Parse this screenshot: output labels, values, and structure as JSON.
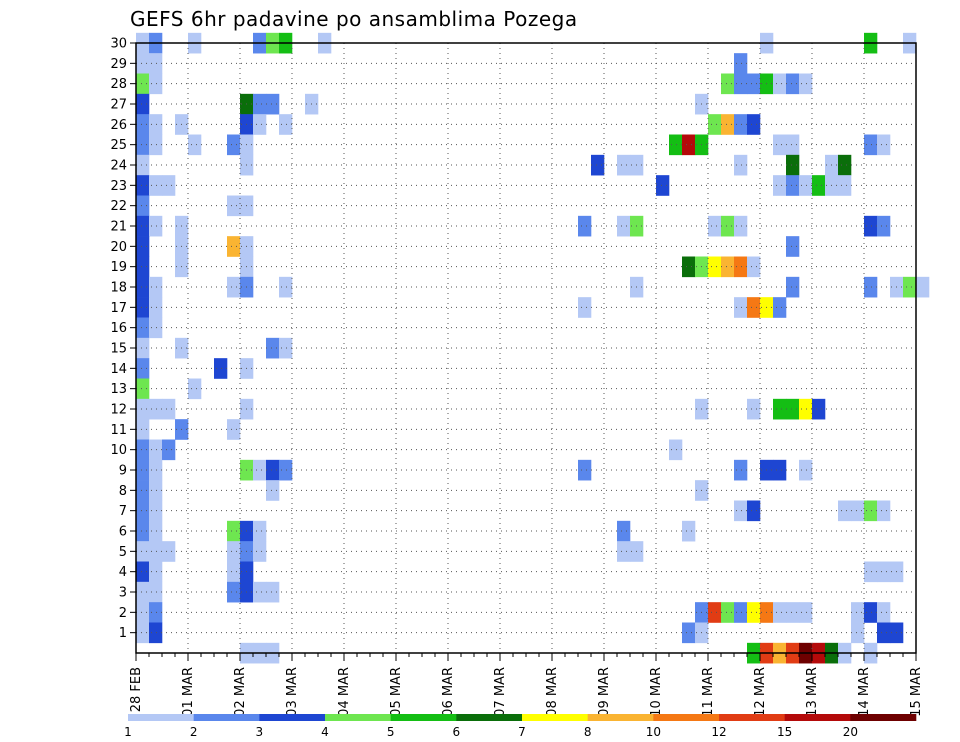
{
  "chart_data": {
    "type": "heatmap",
    "title": "GEFS 6hr padavine po ansamblima Pozega",
    "xlabel": "",
    "ylabel": "",
    "x_tick_labels": [
      "28 FEB",
      "01 MAR",
      "02 MAR",
      "03 MAR",
      "04 MAR",
      "05 MAR",
      "06 MAR",
      "07 MAR",
      "08 MAR",
      "09 MAR",
      "10 MAR",
      "11 MAR",
      "12 MAR",
      "13 MAR",
      "14 MAR",
      "15 MAR"
    ],
    "y_tick_labels": [
      "1",
      "2",
      "3",
      "4",
      "5",
      "6",
      "7",
      "8",
      "9",
      "10",
      "11",
      "12",
      "13",
      "14",
      "15",
      "16",
      "17",
      "18",
      "19",
      "20",
      "21",
      "22",
      "23",
      "24",
      "25",
      "26",
      "27",
      "28",
      "29",
      "30"
    ],
    "x_range_steps": [
      0,
      60
    ],
    "y_range_members": [
      0,
      30
    ],
    "steps_per_day": 4,
    "grid": "dotted",
    "colorbar": {
      "labels": [
        "1",
        "2",
        "3",
        "4",
        "5",
        "6",
        "7",
        "8",
        "10",
        "12",
        "15",
        "20"
      ],
      "colors": [
        "#b4c8f5",
        "#5a87ec",
        "#1e46d2",
        "#6ee650",
        "#14be14",
        "#0a6e0a",
        "#ffff00",
        "#fab432",
        "#f57814",
        "#e13c14",
        "#b40a0a",
        "#6e0000"
      ]
    },
    "cells": [
      [
        0,
        30,
        1
      ],
      [
        1,
        30,
        2
      ],
      [
        4,
        30,
        1
      ],
      [
        9,
        30,
        2
      ],
      [
        10,
        30,
        4
      ],
      [
        11,
        30,
        5
      ],
      [
        14,
        30,
        1
      ],
      [
        48,
        30,
        1
      ],
      [
        56,
        30,
        5
      ],
      [
        59,
        30,
        1
      ],
      [
        0,
        29,
        1
      ],
      [
        1,
        29,
        1
      ],
      [
        46,
        29,
        2
      ],
      [
        0,
        28,
        4
      ],
      [
        1,
        28,
        1
      ],
      [
        45,
        28,
        4
      ],
      [
        46,
        28,
        2
      ],
      [
        47,
        28,
        2
      ],
      [
        48,
        28,
        5
      ],
      [
        49,
        28,
        1
      ],
      [
        50,
        28,
        2
      ],
      [
        51,
        28,
        1
      ],
      [
        0,
        27,
        3
      ],
      [
        8,
        27,
        6
      ],
      [
        9,
        27,
        2
      ],
      [
        10,
        27,
        2
      ],
      [
        13,
        27,
        1
      ],
      [
        43,
        27,
        1
      ],
      [
        0,
        26,
        2
      ],
      [
        1,
        26,
        1
      ],
      [
        3,
        26,
        1
      ],
      [
        8,
        26,
        3
      ],
      [
        9,
        26,
        1
      ],
      [
        11,
        26,
        1
      ],
      [
        44,
        26,
        4
      ],
      [
        45,
        26,
        8
      ],
      [
        46,
        26,
        2
      ],
      [
        47,
        26,
        3
      ],
      [
        0,
        25,
        2
      ],
      [
        1,
        25,
        1
      ],
      [
        4,
        25,
        1
      ],
      [
        7,
        25,
        2
      ],
      [
        8,
        25,
        1
      ],
      [
        41,
        25,
        5
      ],
      [
        42,
        25,
        11
      ],
      [
        43,
        25,
        5
      ],
      [
        49,
        25,
        1
      ],
      [
        50,
        25,
        1
      ],
      [
        56,
        25,
        2
      ],
      [
        57,
        25,
        1
      ],
      [
        0,
        24,
        1
      ],
      [
        8,
        24,
        1
      ],
      [
        35,
        24,
        3
      ],
      [
        37,
        24,
        1
      ],
      [
        38,
        24,
        1
      ],
      [
        46,
        24,
        1
      ],
      [
        50,
        24,
        6
      ],
      [
        53,
        24,
        1
      ],
      [
        54,
        24,
        6
      ],
      [
        0,
        23,
        3
      ],
      [
        1,
        23,
        1
      ],
      [
        2,
        23,
        1
      ],
      [
        40,
        23,
        3
      ],
      [
        49,
        23,
        1
      ],
      [
        50,
        23,
        2
      ],
      [
        51,
        23,
        1
      ],
      [
        52,
        23,
        5
      ],
      [
        53,
        23,
        1
      ],
      [
        54,
        23,
        1
      ],
      [
        0,
        22,
        2
      ],
      [
        7,
        22,
        1
      ],
      [
        8,
        22,
        1
      ],
      [
        0,
        21,
        3
      ],
      [
        1,
        21,
        1
      ],
      [
        3,
        21,
        1
      ],
      [
        34,
        21,
        2
      ],
      [
        37,
        21,
        1
      ],
      [
        38,
        21,
        4
      ],
      [
        44,
        21,
        1
      ],
      [
        45,
        21,
        4
      ],
      [
        46,
        21,
        1
      ],
      [
        56,
        21,
        3
      ],
      [
        57,
        21,
        2
      ],
      [
        0,
        20,
        3
      ],
      [
        3,
        20,
        1
      ],
      [
        7,
        20,
        8
      ],
      [
        8,
        20,
        1
      ],
      [
        50,
        20,
        2
      ],
      [
        0,
        19,
        3
      ],
      [
        3,
        19,
        1
      ],
      [
        8,
        19,
        1
      ],
      [
        42,
        19,
        6
      ],
      [
        43,
        19,
        4
      ],
      [
        44,
        19,
        7
      ],
      [
        45,
        19,
        8
      ],
      [
        46,
        19,
        9
      ],
      [
        47,
        19,
        1
      ],
      [
        0,
        18,
        3
      ],
      [
        1,
        18,
        1
      ],
      [
        7,
        18,
        1
      ],
      [
        8,
        18,
        2
      ],
      [
        11,
        18,
        1
      ],
      [
        38,
        18,
        1
      ],
      [
        50,
        18,
        2
      ],
      [
        56,
        18,
        2
      ],
      [
        58,
        18,
        1
      ],
      [
        59,
        18,
        4
      ],
      [
        60,
        18,
        1
      ],
      [
        0,
        17,
        3
      ],
      [
        1,
        17,
        1
      ],
      [
        34,
        17,
        1
      ],
      [
        46,
        17,
        1
      ],
      [
        47,
        17,
        9
      ],
      [
        48,
        17,
        7
      ],
      [
        49,
        17,
        2
      ],
      [
        0,
        16,
        2
      ],
      [
        1,
        16,
        1
      ],
      [
        0,
        15,
        1
      ],
      [
        3,
        15,
        1
      ],
      [
        10,
        15,
        2
      ],
      [
        11,
        15,
        1
      ],
      [
        0,
        14,
        2
      ],
      [
        6,
        14,
        3
      ],
      [
        8,
        14,
        1
      ],
      [
        0,
        13,
        4
      ],
      [
        4,
        13,
        1
      ],
      [
        0,
        12,
        1
      ],
      [
        1,
        12,
        1
      ],
      [
        2,
        12,
        1
      ],
      [
        8,
        12,
        1
      ],
      [
        43,
        12,
        1
      ],
      [
        47,
        12,
        1
      ],
      [
        49,
        12,
        5
      ],
      [
        50,
        12,
        5
      ],
      [
        51,
        12,
        7
      ],
      [
        52,
        12,
        3
      ],
      [
        0,
        11,
        1
      ],
      [
        3,
        11,
        2
      ],
      [
        7,
        11,
        1
      ],
      [
        0,
        10,
        2
      ],
      [
        1,
        10,
        1
      ],
      [
        2,
        10,
        2
      ],
      [
        41,
        10,
        1
      ],
      [
        0,
        9,
        2
      ],
      [
        1,
        9,
        1
      ],
      [
        8,
        9,
        4
      ],
      [
        9,
        9,
        1
      ],
      [
        10,
        9,
        3
      ],
      [
        11,
        9,
        2
      ],
      [
        34,
        9,
        2
      ],
      [
        46,
        9,
        2
      ],
      [
        48,
        9,
        3
      ],
      [
        49,
        9,
        3
      ],
      [
        51,
        9,
        1
      ],
      [
        0,
        8,
        2
      ],
      [
        1,
        8,
        1
      ],
      [
        10,
        8,
        1
      ],
      [
        43,
        8,
        1
      ],
      [
        0,
        7,
        2
      ],
      [
        1,
        7,
        1
      ],
      [
        46,
        7,
        1
      ],
      [
        47,
        7,
        3
      ],
      [
        54,
        7,
        1
      ],
      [
        55,
        7,
        1
      ],
      [
        56,
        7,
        4
      ],
      [
        57,
        7,
        1
      ],
      [
        0,
        6,
        2
      ],
      [
        1,
        6,
        1
      ],
      [
        7,
        6,
        4
      ],
      [
        8,
        6,
        3
      ],
      [
        9,
        6,
        1
      ],
      [
        37,
        6,
        2
      ],
      [
        42,
        6,
        1
      ],
      [
        0,
        5,
        1
      ],
      [
        1,
        5,
        1
      ],
      [
        2,
        5,
        1
      ],
      [
        7,
        5,
        1
      ],
      [
        8,
        5,
        2
      ],
      [
        9,
        5,
        1
      ],
      [
        37,
        5,
        1
      ],
      [
        38,
        5,
        1
      ],
      [
        0,
        4,
        3
      ],
      [
        1,
        4,
        1
      ],
      [
        7,
        4,
        1
      ],
      [
        8,
        4,
        3
      ],
      [
        56,
        4,
        1
      ],
      [
        57,
        4,
        1
      ],
      [
        58,
        4,
        1
      ],
      [
        0,
        3,
        1
      ],
      [
        1,
        3,
        1
      ],
      [
        7,
        3,
        2
      ],
      [
        8,
        3,
        3
      ],
      [
        9,
        3,
        1
      ],
      [
        10,
        3,
        1
      ],
      [
        0,
        2,
        1
      ],
      [
        1,
        2,
        2
      ],
      [
        43,
        2,
        2
      ],
      [
        44,
        2,
        10
      ],
      [
        45,
        2,
        4
      ],
      [
        46,
        2,
        2
      ],
      [
        47,
        2,
        7
      ],
      [
        48,
        2,
        9
      ],
      [
        49,
        2,
        1
      ],
      [
        50,
        2,
        1
      ],
      [
        51,
        2,
        1
      ],
      [
        55,
        2,
        1
      ],
      [
        56,
        2,
        3
      ],
      [
        57,
        2,
        1
      ],
      [
        0,
        1,
        1
      ],
      [
        1,
        1,
        3
      ],
      [
        42,
        1,
        2
      ],
      [
        43,
        1,
        1
      ],
      [
        55,
        1,
        1
      ],
      [
        57,
        1,
        3
      ],
      [
        58,
        1,
        3
      ],
      [
        8,
        0,
        1
      ],
      [
        9,
        0,
        1
      ],
      [
        10,
        0,
        1
      ],
      [
        47,
        0,
        5
      ],
      [
        48,
        0,
        10
      ],
      [
        49,
        0,
        8
      ],
      [
        50,
        0,
        10
      ],
      [
        51,
        0,
        12
      ],
      [
        52,
        0,
        11
      ],
      [
        53,
        0,
        6
      ],
      [
        54,
        0,
        1
      ],
      [
        56,
        0,
        1
      ]
    ]
  }
}
